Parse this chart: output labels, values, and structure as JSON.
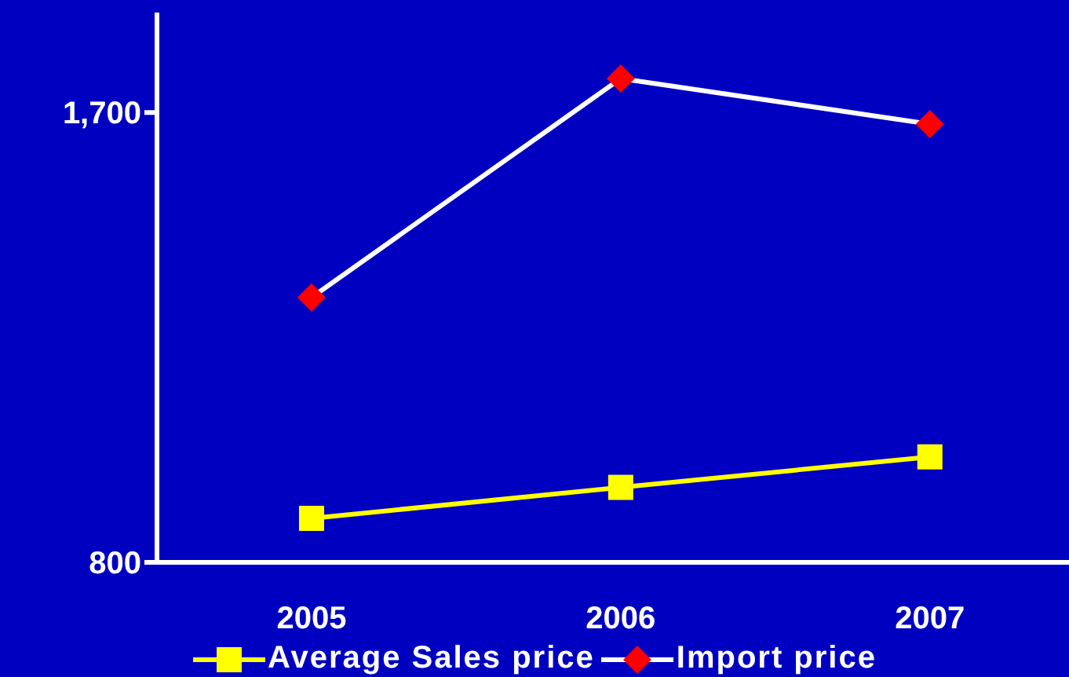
{
  "chart_data": {
    "type": "line",
    "categories": [
      "2005",
      "2006",
      "2007"
    ],
    "series": [
      {
        "name": "Average Sales price",
        "color": "#ffff00",
        "marker": "square",
        "values": [
          888,
          950,
          1011
        ]
      },
      {
        "name": "Import price",
        "color": "#ffffff",
        "colors": [
          "#ff0000",
          "#ff0000",
          "#ff0000"
        ],
        "marker": "diamond",
        "values": [
          1330,
          1768,
          1677
        ]
      }
    ],
    "ylim": [
      800,
      1900
    ],
    "yticks": [
      800,
      {
        "value": 1700,
        "label": "1,700"
      }
    ],
    "grid": false,
    "legend": "bottom"
  }
}
